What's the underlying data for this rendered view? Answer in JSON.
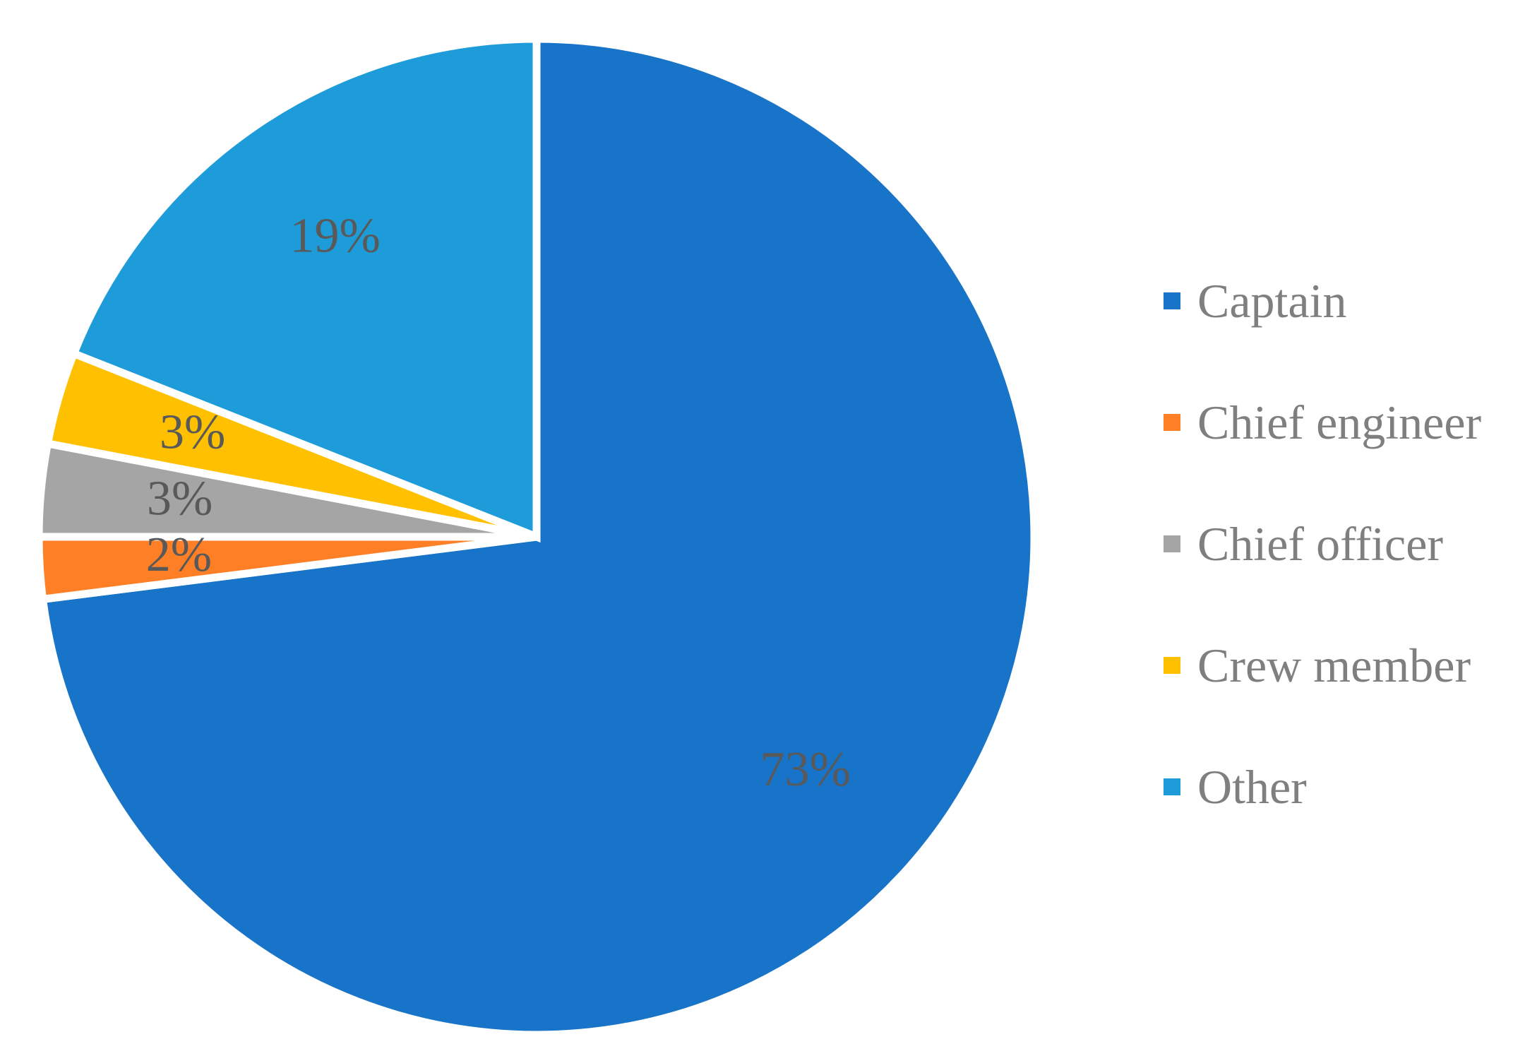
{
  "chart_data": {
    "type": "pie",
    "categories": [
      "Captain",
      "Chief engineer",
      "Chief officer",
      "Crew member",
      "Other"
    ],
    "values": [
      73,
      2,
      3,
      3,
      19
    ],
    "labels": [
      "73%",
      "2%",
      "3%",
      "3%",
      "19%"
    ],
    "colors": [
      "#1874C8",
      "#FF7F27",
      "#A5A5A5",
      "#FFC000",
      "#1E9CD9"
    ],
    "legend_position": "right",
    "start_angle_deg": 0,
    "direction": "clockwise"
  }
}
